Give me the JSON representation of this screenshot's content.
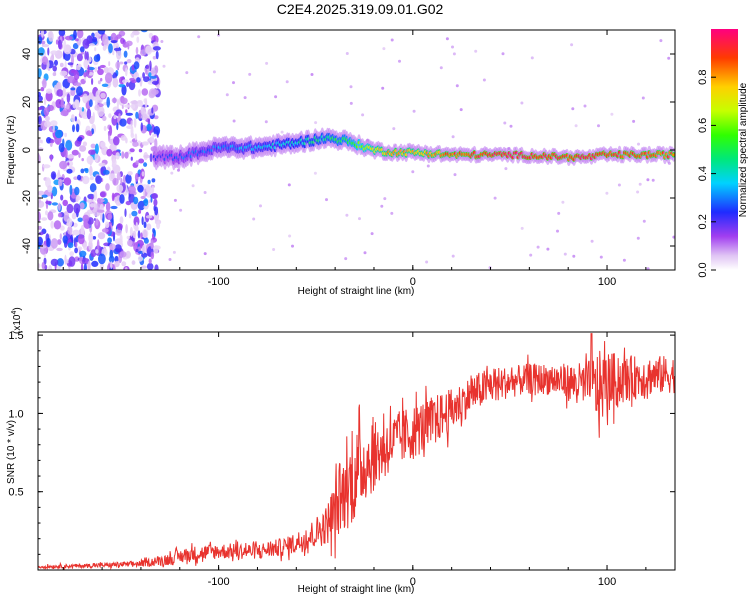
{
  "title": "C2E4.2025.319.09.01.G02",
  "chart_data": [
    {
      "type": "heatmap",
      "name": "spectrogram",
      "xlabel": "Height of straight line (km)",
      "ylabel": "Frequency (Hz)",
      "xlim": [
        -193,
        135
      ],
      "ylim": [
        -50,
        50
      ],
      "xticks": [
        -100,
        0,
        100
      ],
      "xtick_labels": [
        "-100",
        "0",
        "100"
      ],
      "yticks": [
        -40,
        -20,
        0,
        20,
        40
      ],
      "ytick_labels": [
        "-40",
        "-20",
        "0",
        "20",
        "40"
      ],
      "colorbar": {
        "label": "Normalized spectral amplitude",
        "range": [
          0.0,
          1.0
        ],
        "ticks": [
          0.0,
          0.2,
          0.4,
          0.6,
          0.8
        ],
        "tick_labels": [
          "0.0",
          "0.2",
          "0.4",
          "0.6",
          "0.8"
        ]
      },
      "ridge": {
        "description_points_x": [
          -133,
          -120,
          -100,
          -80,
          -60,
          -45,
          -35,
          -20,
          -10,
          0,
          20,
          50,
          80,
          90,
          100,
          135
        ],
        "frequency_hz": [
          -3,
          -3,
          1,
          1,
          3,
          5,
          4,
          0,
          -1,
          -1,
          -2,
          -2,
          -3,
          -3,
          -2,
          -2
        ],
        "amplitude": [
          0.2,
          0.25,
          0.3,
          0.35,
          0.4,
          0.45,
          0.5,
          0.7,
          0.8,
          0.75,
          0.85,
          0.95,
          0.9,
          0.95,
          0.9,
          0.85
        ]
      }
    },
    {
      "type": "line",
      "name": "snr",
      "xlabel": "Height of straight line (km)",
      "ylabel": "SNR (10 * v/v)",
      "scale_label": "(x10",
      "scale_exp": "4",
      "xlim": [
        -193,
        135
      ],
      "ylim": [
        0.0,
        1.52
      ],
      "xticks": [
        -100,
        0,
        100
      ],
      "xtick_labels": [
        "-100",
        "0",
        "100"
      ],
      "yticks": [
        0.5,
        1.0,
        1.5
      ],
      "ytick_labels": [
        "0.5",
        "1.0",
        "1.5"
      ],
      "envelope": {
        "x": [
          -193,
          -160,
          -140,
          -125,
          -115,
          -100,
          -80,
          -65,
          -55,
          -45,
          -40,
          -35,
          -30,
          -25,
          -20,
          -15,
          -10,
          -5,
          0,
          10,
          20,
          30,
          40,
          50,
          60,
          70,
          80,
          90,
          95,
          100,
          110,
          120,
          135
        ],
        "y_mean": [
          0.02,
          0.03,
          0.04,
          0.07,
          0.1,
          0.12,
          0.12,
          0.15,
          0.2,
          0.28,
          0.38,
          0.5,
          0.6,
          0.68,
          0.72,
          0.78,
          0.82,
          0.85,
          0.88,
          0.95,
          1.02,
          1.12,
          1.18,
          1.2,
          1.22,
          1.22,
          1.2,
          1.18,
          1.15,
          1.2,
          1.22,
          1.24,
          1.25
        ],
        "y_spread": [
          0.01,
          0.015,
          0.02,
          0.04,
          0.05,
          0.05,
          0.05,
          0.06,
          0.08,
          0.12,
          0.2,
          0.25,
          0.3,
          0.25,
          0.22,
          0.2,
          0.18,
          0.18,
          0.18,
          0.16,
          0.14,
          0.12,
          0.12,
          0.1,
          0.1,
          0.1,
          0.12,
          0.15,
          0.25,
          0.2,
          0.15,
          0.13,
          0.12
        ]
      },
      "peak": {
        "x": 92,
        "y": 1.51
      },
      "line_color": "#e8332e"
    }
  ]
}
